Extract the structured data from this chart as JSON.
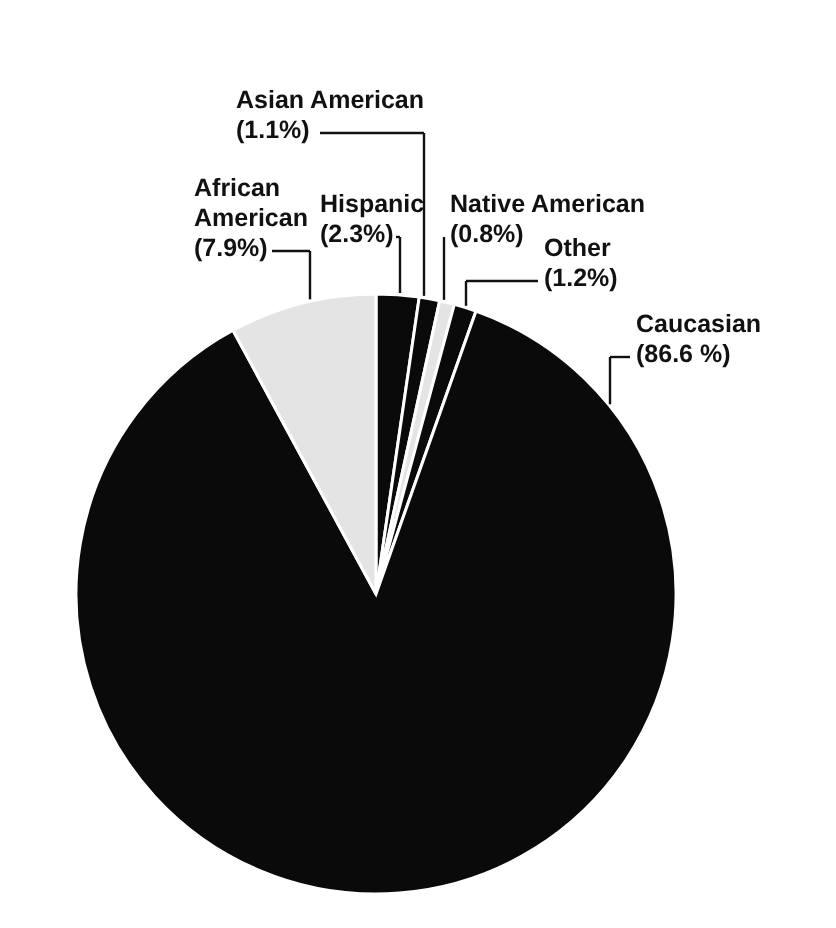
{
  "chart_data": {
    "type": "pie",
    "categories": [
      "Hispanic",
      "Asian American",
      "Native American",
      "Other",
      "Caucasian",
      "African American"
    ],
    "values": [
      2.3,
      1.1,
      0.8,
      1.2,
      86.6,
      7.9
    ],
    "value_labels": [
      "(2.3%)",
      "(1.1%)",
      "(0.8%)",
      "(1.2%)",
      "(86.6 %)",
      "(7.9%)"
    ],
    "colors": [
      "#0a0a0a",
      "#0a0a0a",
      "#e4e4e4",
      "#0a0a0a",
      "#0a0a0a",
      "#e4e4e4"
    ]
  }
}
